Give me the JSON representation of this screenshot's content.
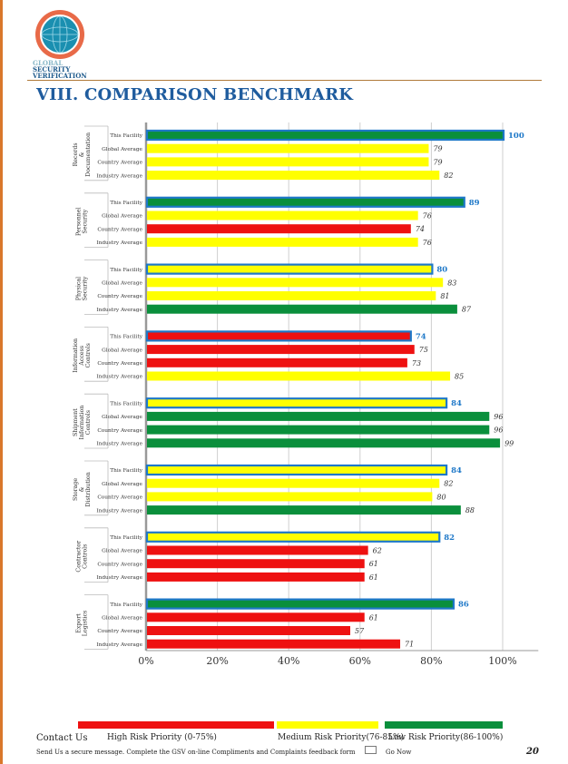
{
  "header": {
    "logo_text": [
      "GLOBAL",
      "SECURITY",
      "VERIFICATION"
    ],
    "page_title": "VIII. COMPARISON BENCHMARK"
  },
  "chart_data": {
    "type": "bar",
    "orientation": "horizontal",
    "xlim": [
      0,
      110
    ],
    "x_ticks": [
      "0%",
      "20%",
      "40%",
      "60%",
      "80%",
      "100%"
    ],
    "grid": true,
    "groups": [
      {
        "name": "Records & Documentation",
        "labels": [
          "Records",
          "&",
          "Documentation"
        ],
        "bars": [
          {
            "label": "This Facility",
            "value": 100
          },
          {
            "label": "Global Average",
            "value": 79
          },
          {
            "label": "Country Average",
            "value": 79
          },
          {
            "label": "Industry Average",
            "value": 82
          }
        ]
      },
      {
        "name": "Personnel Security",
        "labels": [
          "Personnel",
          "Security"
        ],
        "bars": [
          {
            "label": "This Facility",
            "value": 89
          },
          {
            "label": "Global Average",
            "value": 76
          },
          {
            "label": "Country Average",
            "value": 74
          },
          {
            "label": "Industry Average",
            "value": 76
          }
        ]
      },
      {
        "name": "Physical Security",
        "labels": [
          "Physical",
          "Security"
        ],
        "bars": [
          {
            "label": "This Facility",
            "value": 80
          },
          {
            "label": "Global Average",
            "value": 83
          },
          {
            "label": "Country Average",
            "value": 81
          },
          {
            "label": "Industry Average",
            "value": 87
          }
        ]
      },
      {
        "name": "Information Access Controls",
        "labels": [
          "Information",
          "Access",
          "Controls"
        ],
        "bars": [
          {
            "label": "This Facility",
            "value": 74
          },
          {
            "label": "Global Average",
            "value": 75
          },
          {
            "label": "Country Average",
            "value": 73
          },
          {
            "label": "Industry Average",
            "value": 85
          }
        ]
      },
      {
        "name": "Shipment Information Controls",
        "labels": [
          "Shipment",
          "Information",
          "Controls"
        ],
        "bars": [
          {
            "label": "This Facility",
            "value": 84
          },
          {
            "label": "Global Average",
            "value": 96
          },
          {
            "label": "Country Average",
            "value": 96
          },
          {
            "label": "Industry Average",
            "value": 99
          }
        ]
      },
      {
        "name": "Storage & Distribution",
        "labels": [
          "Storage",
          "&",
          "Distribution"
        ],
        "bars": [
          {
            "label": "This Facility",
            "value": 84
          },
          {
            "label": "Global Average",
            "value": 82
          },
          {
            "label": "Country Average",
            "value": 80
          },
          {
            "label": "Industry Average",
            "value": 88
          }
        ]
      },
      {
        "name": "Contractor Controls",
        "labels": [
          "Contractor",
          "Controls"
        ],
        "bars": [
          {
            "label": "This Facility",
            "value": 82
          },
          {
            "label": "Global Average",
            "value": 62
          },
          {
            "label": "Country Average",
            "value": 61
          },
          {
            "label": "Industry Average",
            "value": 61
          }
        ]
      },
      {
        "name": "Export Logistics",
        "labels": [
          "Export",
          "Logistics"
        ],
        "bars": [
          {
            "label": "This Facility",
            "value": 86
          },
          {
            "label": "Global Average",
            "value": 61
          },
          {
            "label": "Country Average",
            "value": 57
          },
          {
            "label": "Industry Average",
            "value": 71
          }
        ]
      }
    ],
    "colors": {
      "high": "#ee1111",
      "medium": "#ffff00",
      "low": "#0a8f3c",
      "facility_outline": "#1e78c8",
      "facility_label": "#1e78c8"
    },
    "thresholds": {
      "high_max": 75,
      "low_min": 86
    }
  },
  "legend": [
    {
      "label": "High Risk Priority (0-75%)",
      "color": "#ee1111"
    },
    {
      "label": "Medium Risk Priority(76-85%)",
      "color": "#ffff00"
    },
    {
      "label": "Low Risk Priority(86-100%)",
      "color": "#0a8f3c"
    }
  ],
  "footer": {
    "contact": "Contact Us",
    "message": "Send Us a secure message. Complete the GSV on-line Compliments and Complaints feedback form",
    "go_now": "Go Now",
    "page_number": "20"
  }
}
